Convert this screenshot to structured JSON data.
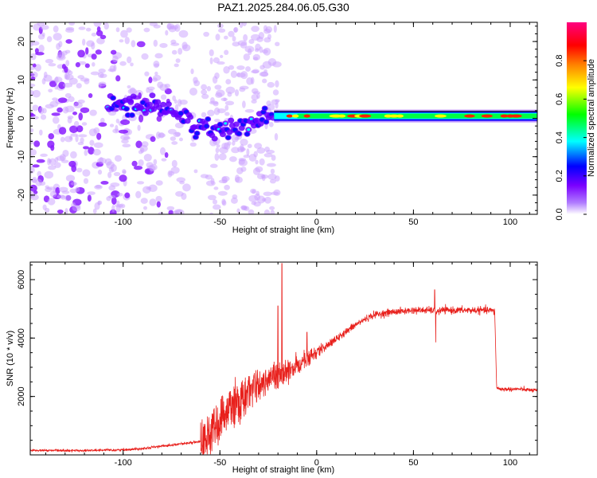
{
  "title": "PAZ1.2025.284.06.05.G30",
  "chart_data": [
    {
      "type": "heatmap",
      "xlabel": "Height of straight line (km)",
      "ylabel": "Frequency (Hz)",
      "xlim": [
        -148,
        114
      ],
      "ylim": [
        -25,
        25
      ],
      "xticks": [
        -100,
        -50,
        0,
        50,
        100
      ],
      "yticks": [
        -20,
        -10,
        0,
        10,
        20
      ],
      "xtick_labels": [
        "-100",
        "-50",
        "0",
        "50",
        "100"
      ],
      "ytick_labels": [
        "-20",
        "-10",
        "0",
        "10",
        "20"
      ],
      "colorbar": {
        "label": "Normalized spectral amplitude",
        "range": [
          0,
          1
        ],
        "ticks": [
          0.0,
          0.2,
          0.4,
          0.6,
          0.8
        ],
        "tick_labels": [
          "0.0",
          "0.2",
          "0.4",
          "0.6",
          "0.8"
        ],
        "colors": [
          "#ffffff",
          "#8000ff",
          "#0000ff",
          "#00ffff",
          "#00ff00",
          "#ffff00",
          "#ff8000",
          "#ff0000",
          "#ff0080"
        ]
      },
      "ridge": [
        {
          "x": -100,
          "y": 4
        },
        {
          "x": -90,
          "y": 3
        },
        {
          "x": -80,
          "y": 3
        },
        {
          "x": -70,
          "y": 1
        },
        {
          "x": -60,
          "y": -3
        },
        {
          "x": -50,
          "y": -3
        },
        {
          "x": -40,
          "y": -2
        },
        {
          "x": -30,
          "y": -1
        },
        {
          "x": -20,
          "y": 1.5
        },
        {
          "x": -10,
          "y": 0.5
        },
        {
          "x": 0,
          "y": 0.5
        },
        {
          "x": 20,
          "y": 0.5
        },
        {
          "x": 50,
          "y": 0.5
        },
        {
          "x": 80,
          "y": 0.5
        },
        {
          "x": 114,
          "y": 0.8
        }
      ]
    },
    {
      "type": "line",
      "xlabel": "Height of straight line (km)",
      "ylabel": "SNR (10 * v/v)",
      "xlim": [
        -148,
        114
      ],
      "ylim": [
        0,
        6600
      ],
      "xticks": [
        -100,
        -50,
        0,
        50,
        100
      ],
      "yticks": [
        2000,
        4000,
        6000
      ],
      "xtick_labels": [
        "-100",
        "-50",
        "0",
        "50",
        "100"
      ],
      "ytick_labels": [
        "2000",
        "4000",
        "6000"
      ],
      "color": "#e8201c",
      "series": [
        {
          "name": "SNR",
          "x": [
            -148,
            -120,
            -100,
            -90,
            -80,
            -70,
            -60,
            -55,
            -50,
            -45,
            -40,
            -35,
            -30,
            -25,
            -20,
            -15,
            -10,
            -5,
            0,
            5,
            10,
            15,
            20,
            25,
            30,
            35,
            40,
            45,
            50,
            55,
            60,
            62,
            65,
            70,
            80,
            90,
            92,
            93,
            95,
            100,
            105,
            114
          ],
          "y": [
            150,
            150,
            170,
            220,
            300,
            380,
            450,
            700,
            1200,
            1600,
            1800,
            2100,
            2400,
            2600,
            2700,
            2900,
            3050,
            3300,
            3500,
            3750,
            3950,
            4200,
            4450,
            4650,
            4800,
            4850,
            4900,
            4920,
            4950,
            4950,
            4950,
            4900,
            4950,
            4950,
            4950,
            4950,
            4900,
            2300,
            2250,
            2250,
            2250,
            2200
          ]
        }
      ],
      "spikes": [
        {
          "x": -18,
          "y": 6550
        },
        {
          "x": -20,
          "y": 5100
        },
        {
          "x": -5,
          "y": 4200
        },
        {
          "x": 61,
          "y": 5650
        },
        {
          "x": 61.5,
          "y": 3850
        }
      ]
    }
  ]
}
